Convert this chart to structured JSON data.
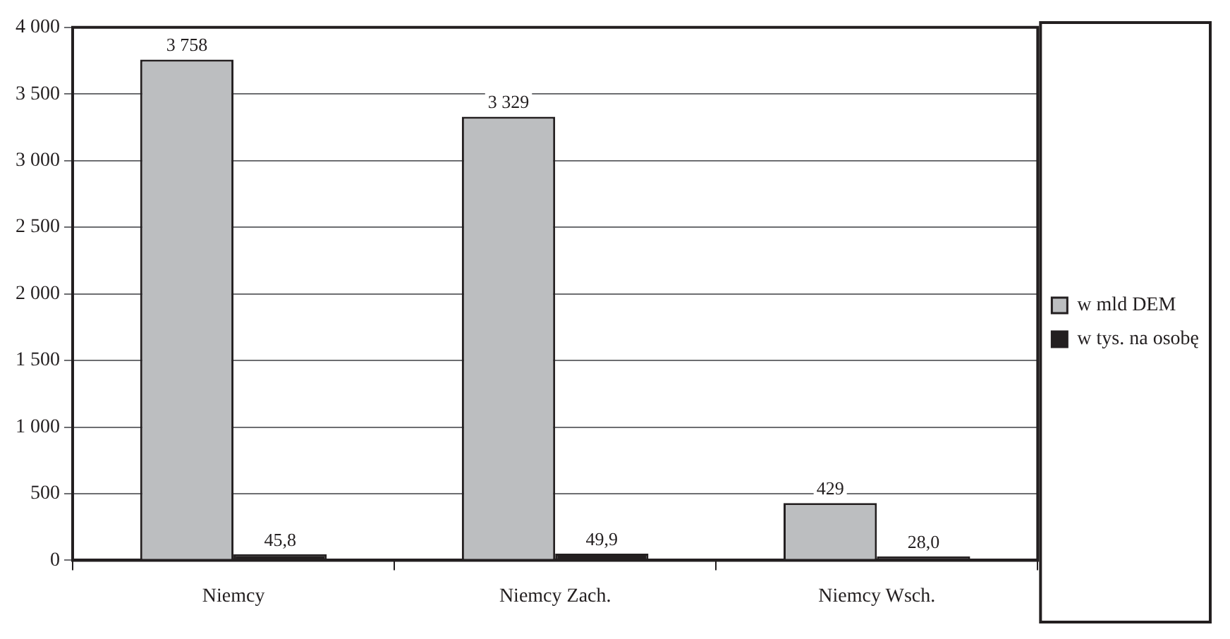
{
  "chart_data": {
    "type": "bar",
    "categories": [
      "Niemcy",
      "Niemcy Zach.",
      "Niemcy Wsch."
    ],
    "series": [
      {
        "name": "w mld DEM",
        "color": "#bcbec0",
        "values": [
          3758,
          3329,
          429
        ],
        "value_labels": [
          "3 758",
          "3 329",
          "429"
        ]
      },
      {
        "name": "w tys. na osobę",
        "color": "#231f20",
        "values": [
          45.8,
          49.9,
          28.0
        ],
        "value_labels": [
          "45,8",
          "49,9",
          "28,0"
        ]
      }
    ],
    "ylim": [
      0,
      4000
    ],
    "yticks": [
      0,
      {
        "value": 500,
        "label": "500"
      },
      {
        "value": 1000,
        "label": "1 000"
      },
      {
        "value": 1500,
        "label": "1 500"
      },
      {
        "value": 2000,
        "label": "2 000"
      },
      {
        "value": 2500,
        "label": "2 500"
      },
      {
        "value": 3000,
        "label": "3 000"
      },
      {
        "value": 3500,
        "label": "3 500"
      },
      {
        "value": 4000,
        "label": "4 000"
      }
    ],
    "grid": "y",
    "legend": "right"
  }
}
